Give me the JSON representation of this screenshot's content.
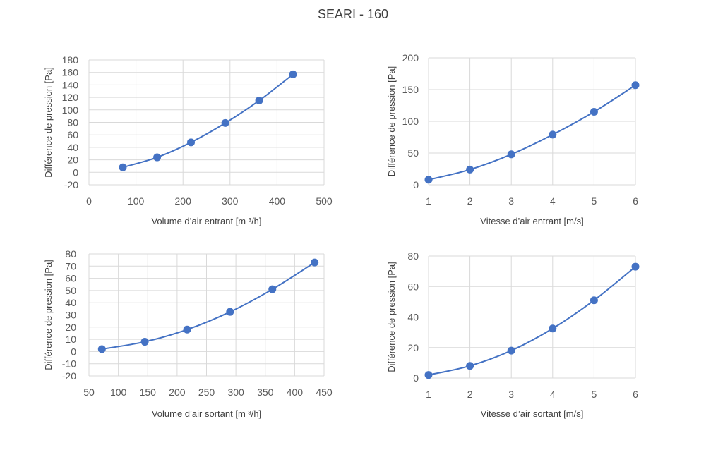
{
  "title": "SEARI - 160",
  "chart_data": [
    {
      "type": "scatter",
      "xlabel": "Volume d’air entrant [m ³/h]",
      "ylabel": "Différence de pression [Pa]",
      "xlim": [
        0,
        500
      ],
      "xticks": [
        0,
        100,
        200,
        300,
        400,
        500
      ],
      "ylim": [
        -20,
        180
      ],
      "yticks": [
        -20,
        0,
        20,
        40,
        60,
        80,
        100,
        120,
        140,
        160,
        180
      ],
      "vgrid": true,
      "x": [
        72,
        145,
        217,
        290,
        362,
        434
      ],
      "y": [
        8,
        24,
        48,
        79,
        115,
        157
      ]
    },
    {
      "type": "scatter",
      "xlabel": "Vitesse d’air entrant [m/s]",
      "ylabel": "Différence de pression [Pa]",
      "xlim": [
        1,
        6
      ],
      "xticks": [
        1,
        2,
        3,
        4,
        5,
        6
      ],
      "ylim": [
        0,
        200
      ],
      "yticks": [
        0,
        50,
        100,
        150,
        200
      ],
      "vgrid": true,
      "x": [
        1,
        2,
        3,
        4,
        5,
        6
      ],
      "y": [
        8,
        24,
        48,
        79,
        115,
        157
      ]
    },
    {
      "type": "scatter",
      "xlabel": "Volume d’air sortant [m ³/h]",
      "ylabel": "Différence de pression [Pa]",
      "xlim": [
        50,
        450
      ],
      "xticks": [
        50,
        100,
        150,
        200,
        250,
        300,
        350,
        400,
        450
      ],
      "ylim": [
        -20,
        80
      ],
      "yticks": [
        -20,
        -10,
        0,
        10,
        20,
        30,
        40,
        50,
        60,
        70,
        80
      ],
      "vgrid": true,
      "x": [
        72,
        145,
        217,
        290,
        362,
        434
      ],
      "y": [
        2,
        8,
        18,
        32.5,
        51,
        73
      ]
    },
    {
      "type": "scatter",
      "xlabel": "Vitesse d’air sortant [m/s]",
      "ylabel": "Différence de pression [Pa]",
      "xlim": [
        1,
        6
      ],
      "xticks": [
        1,
        2,
        3,
        4,
        5,
        6
      ],
      "ylim": [
        0,
        80
      ],
      "yticks": [
        0,
        20,
        40,
        60,
        80
      ],
      "vgrid": true,
      "x": [
        1,
        2,
        3,
        4,
        5,
        6
      ],
      "y": [
        2,
        8,
        18,
        32.5,
        51,
        73
      ]
    }
  ]
}
